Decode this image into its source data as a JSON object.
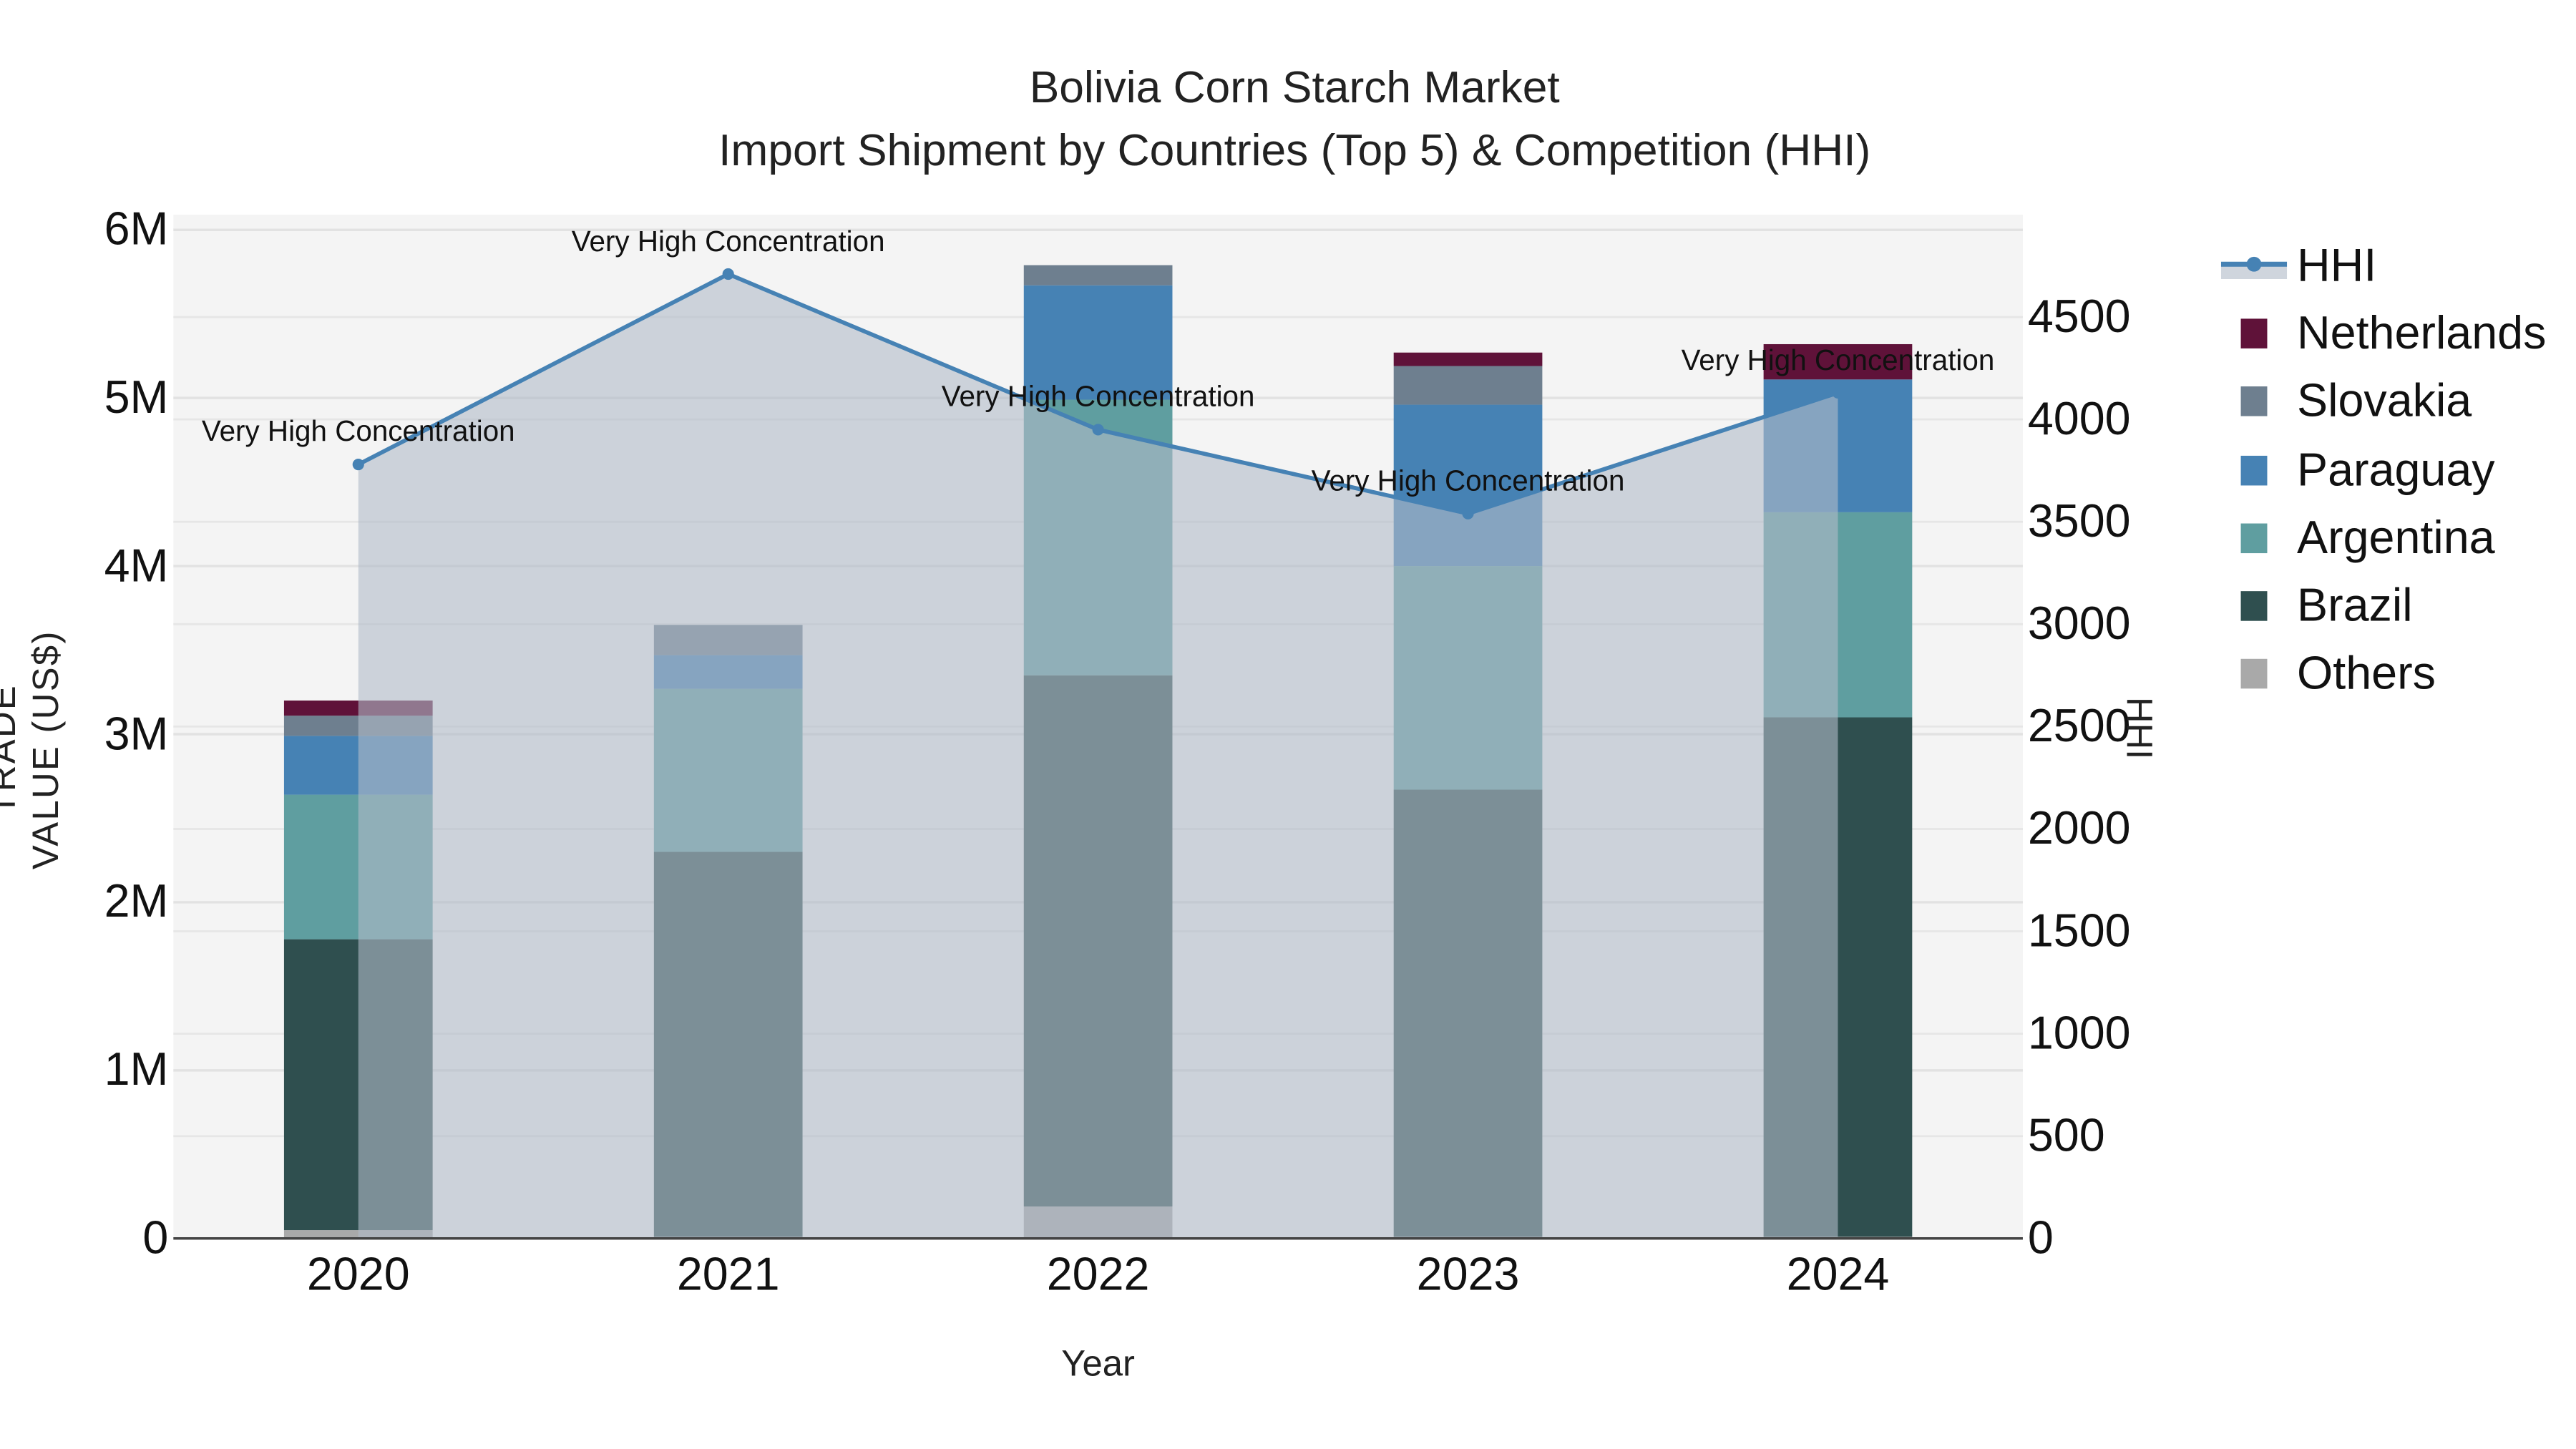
{
  "chart": {
    "title_line1": "Bolivia Corn Starch Market",
    "title_line2": "Import Shipment by Countries (Top 5) & Competition (HHI)",
    "xlabel": "Year",
    "ylabel_left": "TRADE VALUE (US$)",
    "ylabel_right": "HHI",
    "left_ticks": [
      "0",
      "1M",
      "2M",
      "3M",
      "4M",
      "5M",
      "6M"
    ],
    "right_ticks": [
      "0",
      "500",
      "1000",
      "1500",
      "2000",
      "2500",
      "3000",
      "3500",
      "4000",
      "4500"
    ],
    "x_ticks": [
      "2020",
      "2021",
      "2022",
      "2023",
      "2024"
    ],
    "legend": {
      "hhi": "HHI",
      "items": [
        "Netherlands",
        "Slovakia",
        "Paraguay",
        "Argentina",
        "Brazil",
        "Others"
      ]
    },
    "annotations": [
      "Very High Concentration",
      "Very High Concentration",
      "Very High Concentration",
      "Very High Concentration",
      "Very High Concentration"
    ]
  },
  "colors": {
    "Netherlands": "#5f1239",
    "Slovakia": "#6e7f8f",
    "Paraguay": "#4682b4",
    "Argentina": "#5f9ea0",
    "Brazil": "#2f4f4f",
    "Others": "#a9a9a9",
    "hhi_line": "#4682b4",
    "hhi_fill": "rgba(176,186,200,0.6)",
    "plot_bg": "#f4f4f4"
  },
  "chart_data": {
    "type": "bar",
    "subtype": "stacked bar with secondary-axis area line",
    "title": "Bolivia Corn Starch Market — Import Shipment by Countries (Top 5) & Competition (HHI)",
    "xlabel": "Year",
    "ylabel": "TRADE VALUE (US$)",
    "y2label": "HHI",
    "categories": [
      "2020",
      "2021",
      "2022",
      "2023",
      "2024"
    ],
    "ylim": [
      0,
      6100000
    ],
    "y2lim": [
      0,
      4950
    ],
    "series": [
      {
        "name": "Others",
        "values": [
          50000,
          10000,
          190000,
          10000,
          10000
        ]
      },
      {
        "name": "Brazil",
        "values": [
          1730000,
          2290000,
          3160000,
          2660000,
          3090000
        ]
      },
      {
        "name": "Argentina",
        "values": [
          860000,
          970000,
          1640000,
          1330000,
          1220000
        ]
      },
      {
        "name": "Paraguay",
        "values": [
          350000,
          200000,
          680000,
          960000,
          790000
        ]
      },
      {
        "name": "Slovakia",
        "values": [
          120000,
          180000,
          120000,
          230000,
          0
        ]
      },
      {
        "name": "Netherlands",
        "values": [
          90000,
          0,
          0,
          80000,
          210000
        ]
      }
    ],
    "line_series": {
      "name": "HHI",
      "axis": "right",
      "values": [
        3780,
        4710,
        3950,
        3540,
        4130
      ],
      "labels": [
        "Very High Concentration",
        "Very High Concentration",
        "Very High Concentration",
        "Very High Concentration",
        "Very High Concentration"
      ]
    },
    "legend_position": "right",
    "grid": true
  }
}
